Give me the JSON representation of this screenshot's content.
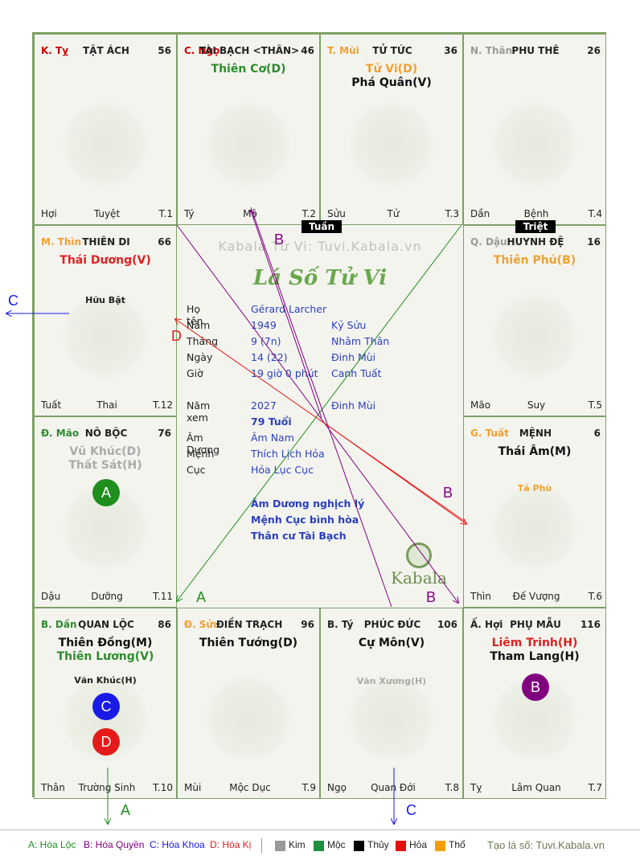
{
  "palaces": [
    {
      "branch": "K. Tỵ",
      "branch_color": "#cc0000",
      "name": "TẬT ÁCH",
      "age": "56",
      "stars": [],
      "minor": [],
      "footer": {
        "left": "Hợi",
        "center": "Tuyệt",
        "right": "T.1"
      }
    },
    {
      "branch": "C. Ngọ",
      "branch_color": "#cc0000",
      "name": "TÀI BẠCH <THÂN>",
      "age": "46",
      "stars": [
        {
          "text": "Thiên Cơ(D)",
          "color": "#2e8b2e"
        }
      ],
      "minor": [],
      "footer": {
        "left": "Tý",
        "center": "Mộ",
        "right": "T.2"
      }
    },
    {
      "branch": "T. Mùi",
      "branch_color": "#f0a030",
      "name": "TỬ TỨC",
      "age": "36",
      "stars": [
        {
          "text": "Tử Vi(D)",
          "color": "#f0a030"
        },
        {
          "text": "Phá Quân(V)",
          "color": "#111111"
        }
      ],
      "minor": [],
      "footer": {
        "left": "Sửu",
        "center": "Tử",
        "right": "T.3"
      }
    },
    {
      "branch": "N. Thân",
      "branch_color": "#999999",
      "name": "PHU THÊ",
      "age": "26",
      "stars": [],
      "minor": [],
      "footer": {
        "left": "Dần",
        "center": "Bệnh",
        "right": "T.4"
      }
    },
    {
      "branch": "M. Thìn",
      "branch_color": "#f0a030",
      "name": "THIÊN DI",
      "age": "66",
      "stars": [
        {
          "text": "Thái Dương(V)",
          "color": "#dd2222"
        }
      ],
      "minor": [
        {
          "text": "Hữu Bật",
          "color": "#222222"
        }
      ],
      "footer": {
        "left": "Tuất",
        "center": "Thai",
        "right": "T.12"
      }
    },
    {
      "branch": "Q. Dậu",
      "branch_color": "#999999",
      "name": "HUYNH ĐỆ",
      "age": "16",
      "stars": [
        {
          "text": "Thiên Phủ(B)",
          "color": "#f0a030"
        }
      ],
      "minor": [],
      "footer": {
        "left": "Mão",
        "center": "Suy",
        "right": "T.5"
      }
    },
    {
      "branch": "Đ. Mão",
      "branch_color": "#2e8b2e",
      "name": "NÔ BỘC",
      "age": "76",
      "stars": [
        {
          "text": "Vũ Khúc(D)",
          "color": "#aaaaaa"
        },
        {
          "text": "Thất Sát(H)",
          "color": "#aaaaaa"
        }
      ],
      "minor": [],
      "footer": {
        "left": "Dậu",
        "center": "Dưỡng",
        "right": "T.11"
      }
    },
    {
      "branch": "G. Tuất",
      "branch_color": "#f0a030",
      "name": "MỆNH",
      "age": "6",
      "stars": [
        {
          "text": "Thái Âm(M)",
          "color": "#111111"
        }
      ],
      "minor": [
        {
          "text": "Tả Phù",
          "color": "#f0a030"
        }
      ],
      "footer": {
        "left": "Thìn",
        "center": "Đế Vượng",
        "right": "T.6"
      }
    },
    {
      "branch": "B. Dần",
      "branch_color": "#2e8b2e",
      "name": "QUAN LỘC",
      "age": "86",
      "stars": [
        {
          "text": "Thiên Đồng(M)",
          "color": "#111111"
        },
        {
          "text": "Thiên Lương(V)",
          "color": "#2e8b2e"
        }
      ],
      "minor": [
        {
          "text": "Văn Khúc(H)",
          "color": "#222222"
        }
      ],
      "footer": {
        "left": "Thân",
        "center": "Trường Sinh",
        "right": "T.10"
      }
    },
    {
      "branch": "Đ. Sửu",
      "branch_color": "#f0a030",
      "name": "ĐIỀN TRẠCH",
      "age": "96",
      "stars": [
        {
          "text": "Thiên Tướng(D)",
          "color": "#111111"
        }
      ],
      "minor": [],
      "footer": {
        "left": "Mùi",
        "center": "Mộc Dục",
        "right": "T.9"
      }
    },
    {
      "branch": "B. Tý",
      "branch_color": "#222222",
      "name": "PHÚC ĐỨC",
      "age": "106",
      "stars": [
        {
          "text": "Cự Môn(V)",
          "color": "#111111"
        }
      ],
      "minor": [
        {
          "text": "Văn Xương(H)",
          "color": "#aaaaaa"
        }
      ],
      "footer": {
        "left": "Ngọ",
        "center": "Quan Đới",
        "right": "T.8"
      }
    },
    {
      "branch": "Ấ. Hợi",
      "branch_color": "#222222",
      "name": "PHỤ MẪU",
      "age": "116",
      "stars": [
        {
          "text": "Liêm Trinh(H)",
          "color": "#dd2222"
        },
        {
          "text": "Tham Lang(H)",
          "color": "#111111"
        }
      ],
      "minor": [],
      "footer": {
        "left": "Tỵ",
        "center": "Lâm Quan",
        "right": "T.7"
      }
    }
  ],
  "badges": {
    "no_boc": {
      "letter": "A",
      "color": "#1e8f1e"
    },
    "quan_loc_c": {
      "letter": "C",
      "color": "#1a1ae6"
    },
    "quan_loc_d": {
      "letter": "D",
      "color": "#e61a1a"
    },
    "phu_mau": {
      "letter": "B",
      "color": "#800080"
    }
  },
  "tags": {
    "tuan": "Tuần",
    "triet": "Triệt"
  },
  "center": {
    "watermark": "Kabala Tử Vi: Tuvi.Kabala.vn",
    "title": "Lá Số Tử Vi",
    "rows": [
      {
        "k": "Họ tên",
        "v": "Gérard Larcher",
        "v2": ""
      },
      {
        "k": "Năm",
        "v": "1949",
        "v2": "Kỷ Sửu"
      },
      {
        "k": "Tháng",
        "v": "9  (7n)",
        "v2": "Nhâm Thân"
      },
      {
        "k": "Ngày",
        "v": "14  (22)",
        "v2": "Đinh Mùi"
      },
      {
        "k": "Giờ",
        "v": "19 giờ 0 phút",
        "v2": "Canh Tuất"
      },
      {
        "k": "Năm xem",
        "v": "2027",
        "v2": "Đinh Mùi"
      },
      {
        "k": "",
        "v": "79 Tuổi",
        "v2": ""
      },
      {
        "k": "Âm Dương",
        "v": "Âm Nam",
        "v2": ""
      },
      {
        "k": "Mệnh",
        "v": "Thích Lịch Hỏa",
        "v2": ""
      },
      {
        "k": "Cục",
        "v": "Hỏa Lục Cục",
        "v2": ""
      }
    ],
    "notes": [
      "Âm Dương nghịch lý",
      "Mệnh Cục bình hòa",
      "Thân cư Tài Bạch"
    ],
    "logo_text": "Kabala"
  },
  "arrow_labels": {
    "a1": "A",
    "a2": "A",
    "b1": "B",
    "b2": "B",
    "b3": "B",
    "c1": "C",
    "c2": "C",
    "d1": "D"
  },
  "arrow_colors": {
    "A": "#1e8f1e",
    "B": "#800080",
    "C": "#1a1ae6",
    "D": "#e61a1a"
  },
  "legend": {
    "a": "A: Hóa Lộc",
    "b": "B: Hóa Quyền",
    "c": "C: Hóa Khoa",
    "d": "D: Hóa Kị",
    "elements": [
      {
        "label": "Kim",
        "color": "#999999"
      },
      {
        "label": "Mộc",
        "color": "#1e8f3e"
      },
      {
        "label": "Thủy",
        "color": "#000000"
      },
      {
        "label": "Hỏa",
        "color": "#e01010"
      },
      {
        "label": "Thổ",
        "color": "#f5a000"
      }
    ],
    "credit": "Tạo lá số: Tuvi.Kabala.vn"
  }
}
